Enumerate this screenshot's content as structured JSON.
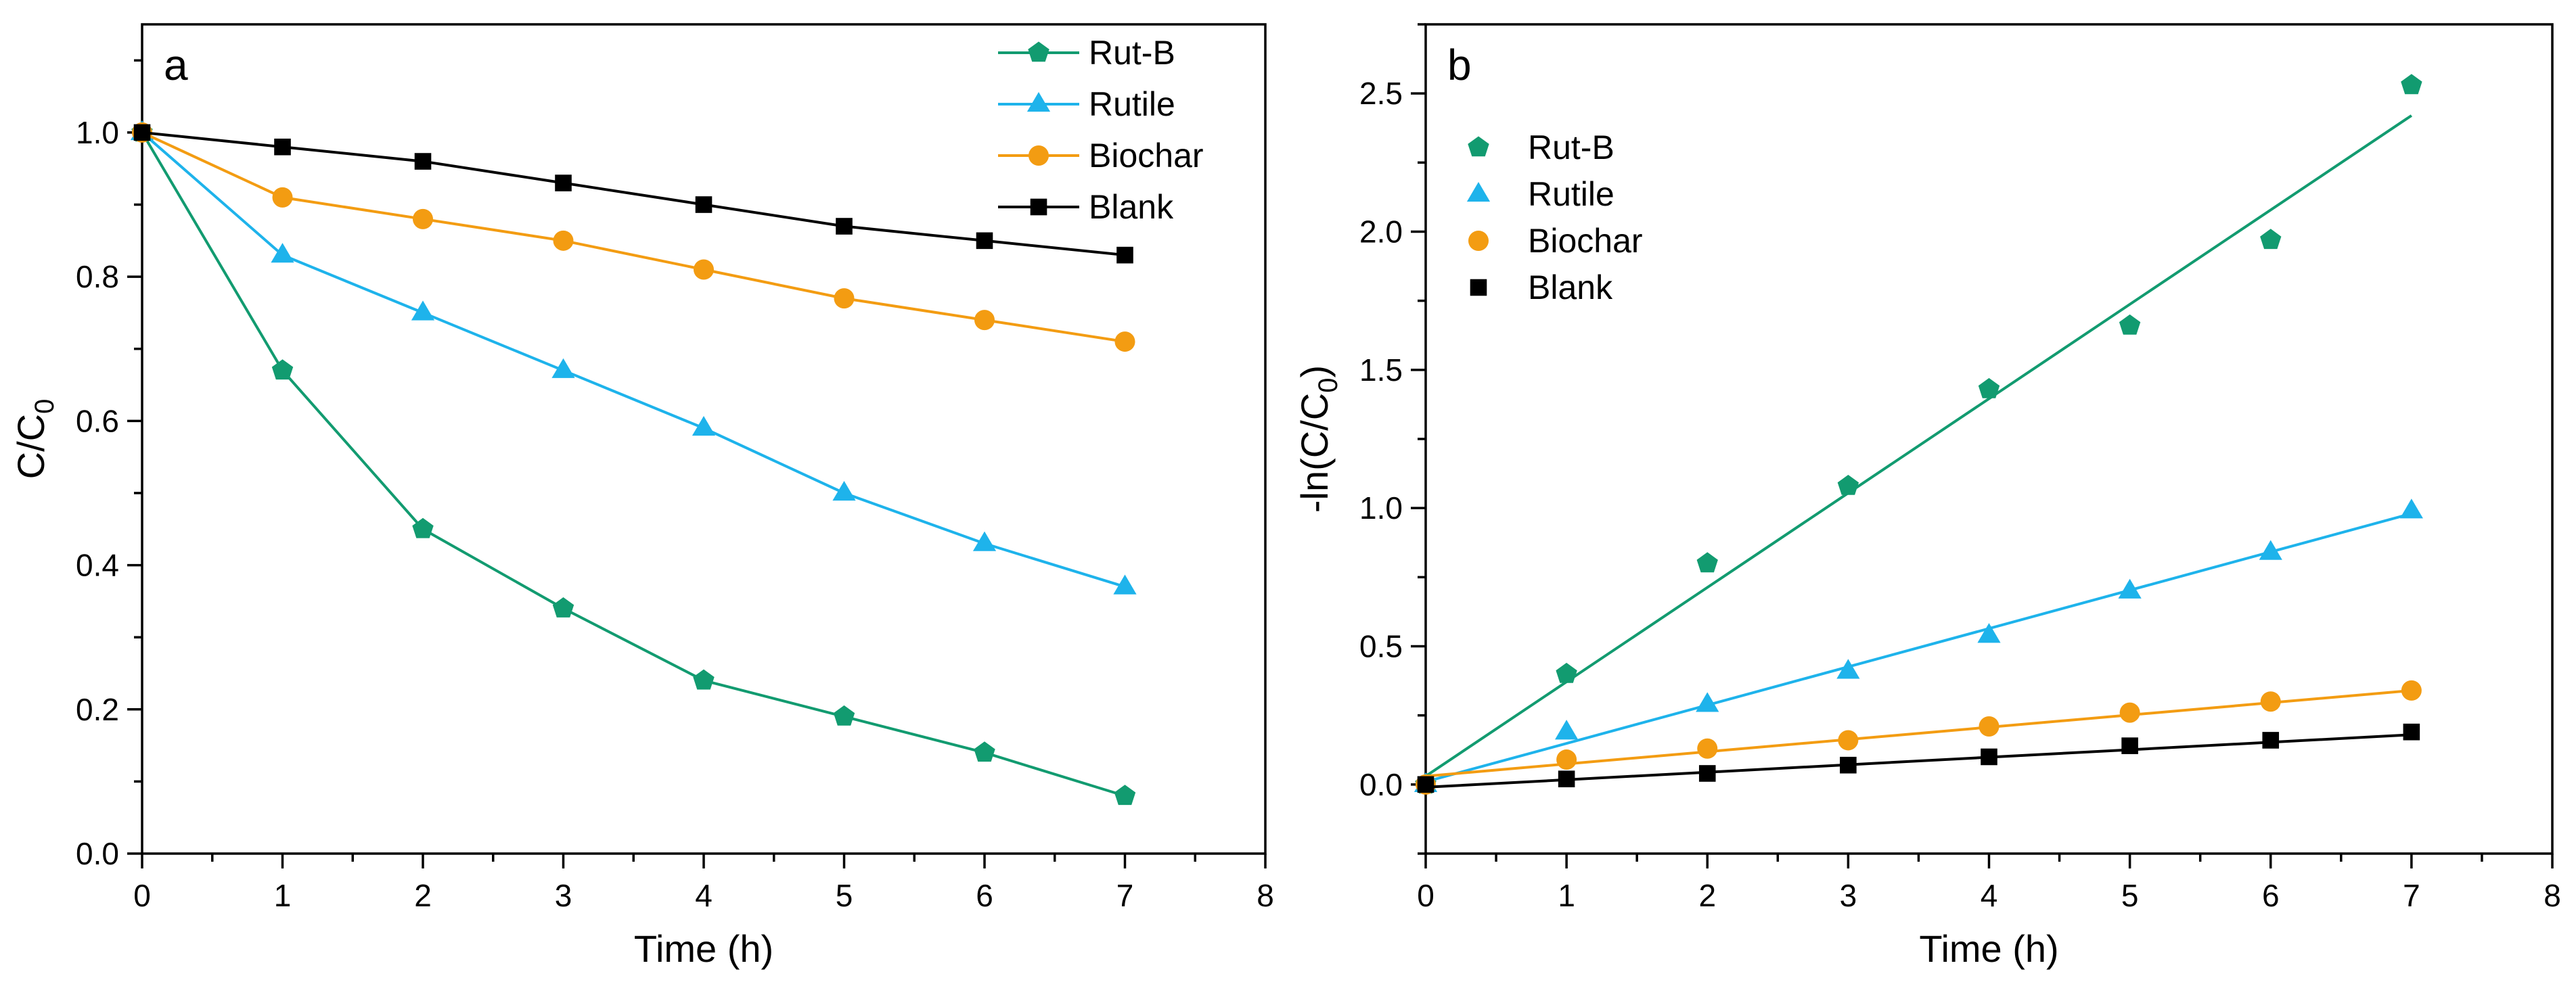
{
  "chart_data": [
    {
      "type": "line",
      "panel_label": "a",
      "xlabel": "Time (h)",
      "ylabel_main": "C/C",
      "ylabel_sub": "0",
      "xlim": [
        0,
        8
      ],
      "ylim": [
        0,
        1.15
      ],
      "xticks": [
        0,
        1,
        2,
        3,
        4,
        5,
        6,
        7,
        8
      ],
      "xtick_labels": [
        "0",
        "1",
        "2",
        "3",
        "4",
        "5",
        "6",
        "7",
        "8"
      ],
      "yticks": [
        0,
        0.2,
        0.4,
        0.6,
        0.8,
        1.0
      ],
      "ytick_labels": [
        "0.0",
        "0.2",
        "0.4",
        "0.6",
        "0.8",
        "1.0"
      ],
      "legend_position": "top-right",
      "x": [
        0,
        1,
        2,
        3,
        4,
        5,
        6,
        7
      ],
      "series": [
        {
          "name": "Rut-B",
          "color": "#129B70",
          "marker": "pentagon",
          "values": [
            1.0,
            0.67,
            0.45,
            0.34,
            0.24,
            0.19,
            0.14,
            0.08
          ]
        },
        {
          "name": "Rutile",
          "color": "#1EB3EB",
          "marker": "triangle",
          "values": [
            1.0,
            0.83,
            0.75,
            0.67,
            0.59,
            0.5,
            0.43,
            0.37
          ]
        },
        {
          "name": "Biochar",
          "color": "#F39C12",
          "marker": "circle",
          "values": [
            1.0,
            0.91,
            0.88,
            0.85,
            0.81,
            0.77,
            0.74,
            0.71
          ]
        },
        {
          "name": "Blank",
          "color": "#000000",
          "marker": "square",
          "values": [
            1.0,
            0.98,
            0.96,
            0.93,
            0.9,
            0.87,
            0.85,
            0.83
          ]
        }
      ]
    },
    {
      "type": "scatter",
      "panel_label": "b",
      "xlabel": "Time (h)",
      "ylabel_main": "-ln(C/C",
      "ylabel_sub": "0",
      "ylabel_end": ")",
      "xlim": [
        0,
        8
      ],
      "ylim": [
        -0.25,
        2.75
      ],
      "xticks": [
        0,
        1,
        2,
        3,
        4,
        5,
        6,
        7,
        8
      ],
      "xtick_labels": [
        "0",
        "1",
        "2",
        "3",
        "4",
        "5",
        "6",
        "7",
        "8"
      ],
      "yticks": [
        0,
        0.5,
        1.0,
        1.5,
        2.0,
        2.5
      ],
      "ytick_labels": [
        "0.0",
        "0.5",
        "1.0",
        "1.5",
        "2.0",
        "2.5"
      ],
      "legend_position": "top-left",
      "x": [
        0,
        1,
        2,
        3,
        4,
        5,
        6,
        7
      ],
      "series": [
        {
          "name": "Rut-B",
          "color": "#129B70",
          "marker": "pentagon",
          "values": [
            0.0,
            0.4,
            0.8,
            1.08,
            1.43,
            1.66,
            1.97,
            2.53
          ],
          "fit": [
            0.03,
            2.42
          ]
        },
        {
          "name": "Rutile",
          "color": "#1EB3EB",
          "marker": "triangle",
          "values": [
            0.0,
            0.19,
            0.29,
            0.41,
            0.54,
            0.7,
            0.84,
            0.99
          ],
          "fit": [
            0.01,
            0.98
          ]
        },
        {
          "name": "Biochar",
          "color": "#F39C12",
          "marker": "circle",
          "values": [
            0.0,
            0.09,
            0.13,
            0.16,
            0.21,
            0.26,
            0.3,
            0.34
          ],
          "fit": [
            0.03,
            0.34
          ]
        },
        {
          "name": "Blank",
          "color": "#000000",
          "marker": "square",
          "values": [
            0.0,
            0.02,
            0.04,
            0.07,
            0.1,
            0.14,
            0.16,
            0.19
          ],
          "fit": [
            -0.01,
            0.18
          ]
        }
      ]
    }
  ]
}
